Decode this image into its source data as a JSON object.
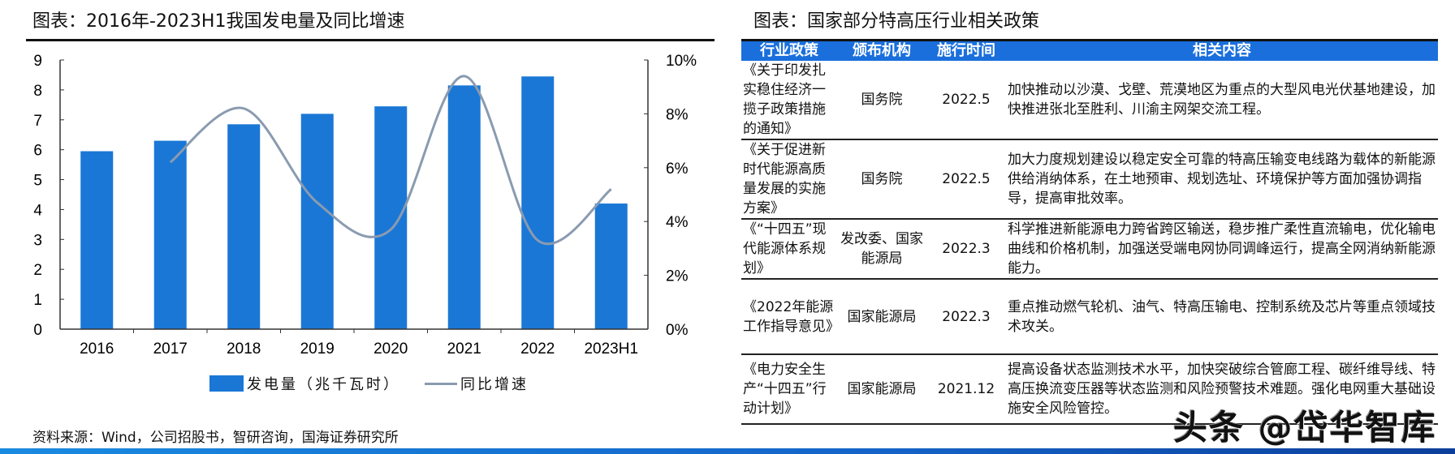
{
  "left": {
    "title": "图表：2016年-2023H1我国发电量及同比增速",
    "source": "资料来源：Wind，公司招股书，智研咨询，国海证券研究所"
  },
  "chart_data": {
    "type": "bar+line",
    "categories": [
      "2016",
      "2017",
      "2018",
      "2019",
      "2020",
      "2021",
      "2022",
      "2023H1"
    ],
    "series": [
      {
        "name": "发电量（兆千瓦时）",
        "type": "bar",
        "axis": "left",
        "color": "#1a77d6",
        "values": [
          5.95,
          6.3,
          6.85,
          7.2,
          7.45,
          8.15,
          8.45,
          4.2
        ]
      },
      {
        "name": "同比增速",
        "type": "line",
        "axis": "right",
        "color": "#8a9bb0",
        "values": [
          null,
          6.2,
          8.2,
          4.7,
          3.7,
          9.4,
          3.3,
          5.2
        ]
      }
    ],
    "yleft": {
      "min": 0,
      "max": 9,
      "ticks": [
        "0",
        "1",
        "2",
        "3",
        "4",
        "5",
        "6",
        "7",
        "8",
        "9"
      ]
    },
    "yright": {
      "min": 0,
      "max": 10,
      "ticks": [
        "0%",
        "2%",
        "4%",
        "6%",
        "8%",
        "10%"
      ]
    },
    "grid": false,
    "legend": "bottom"
  },
  "right": {
    "title": "图表：国家部分特高压行业相关政策",
    "headers": [
      "行业政策",
      "颁布机构",
      "施行时间",
      "相关内容"
    ],
    "rows": [
      [
        "《关于印发扎实稳住经济一揽子政策措施的通知》",
        "国务院",
        "2022.5",
        "加快推动以沙漠、戈壁、荒漠地区为重点的大型风电光伏基地建设，加快推进张北至胜利、川渝主网架交流工程。"
      ],
      [
        "《关于促进新时代能源高质量发展的实施方案》",
        "国务院",
        "2022.5",
        "加大力度规划建设以稳定安全可靠的特高压输变电线路为载体的新能源供给消纳体系，在土地预审、规划选址、环境保护等方面加强协调指导，提高审批效率。"
      ],
      [
        "《“十四五”现代能源体系规划》",
        "发改委、国家能源局",
        "2022.3",
        "科学推进新能源电力跨省跨区输送，稳步推广柔性直流输电，优化输电曲线和价格机制，加强送受端电网协同调峰运行，提高全网消纳新能源能力。"
      ],
      [
        "《2022年能源工作指导意见》",
        "国家能源局",
        "2022.3",
        "重点推动燃气轮机、油气、特高压输电、控制系统及芯片等重点领域技术攻关。"
      ],
      [
        "《电力安全生产“十四五”行动计划》",
        "国家能源局",
        "2021.12",
        "提高设备状态监测技术水平，加快突破综合管廊工程、碳纤维导线、特高压换流变压器等状态监测和风险预警技术难题。强化电网重大基础设施安全风险管控。"
      ]
    ]
  },
  "watermark": "头条 @岱华智库"
}
